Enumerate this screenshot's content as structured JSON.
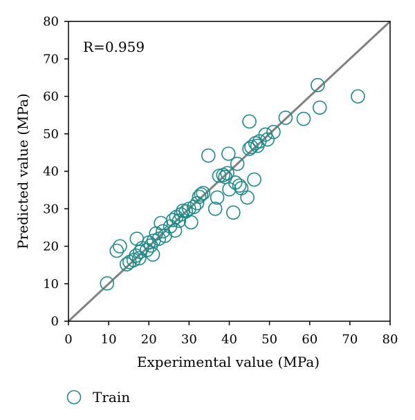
{
  "chart_data": {
    "type": "scatter",
    "xlabel": "Experimental value (MPa)",
    "ylabel": "Predicted value (MPa)",
    "xlim": [
      0,
      80
    ],
    "ylim": [
      0,
      80
    ],
    "xticks": [
      "0",
      "10",
      "20",
      "30",
      "40",
      "50",
      "60",
      "70",
      "80"
    ],
    "yticks": [
      "0",
      "10",
      "20",
      "30",
      "40",
      "50",
      "60",
      "70",
      "80"
    ],
    "grid": false,
    "annotation": "R=0.959",
    "reference_line": {
      "x": [
        0,
        80
      ],
      "y": [
        0,
        80
      ],
      "color": "#808080"
    },
    "legend_position": "bottom-left",
    "series": [
      {
        "name": "Train",
        "marker": "open-circle",
        "color": "#1a8a8a",
        "points": [
          [
            9.6,
            10.1
          ],
          [
            12.0,
            18.8
          ],
          [
            12.8,
            20.0
          ],
          [
            14.5,
            15.2
          ],
          [
            15.2,
            15.8
          ],
          [
            16.2,
            16.3
          ],
          [
            16.8,
            17.5
          ],
          [
            17.0,
            22.0
          ],
          [
            17.6,
            16.8
          ],
          [
            17.8,
            18.5
          ],
          [
            18.3,
            19.5
          ],
          [
            19.5,
            19.0
          ],
          [
            20.0,
            21.0
          ],
          [
            20.5,
            20.2
          ],
          [
            21.0,
            17.8
          ],
          [
            21.2,
            21.5
          ],
          [
            21.8,
            23.4
          ],
          [
            22.5,
            22.0
          ],
          [
            23.0,
            26.2
          ],
          [
            23.5,
            24.0
          ],
          [
            24.0,
            22.8
          ],
          [
            25.3,
            25.3
          ],
          [
            26.0,
            27.0
          ],
          [
            26.5,
            24.2
          ],
          [
            26.8,
            27.8
          ],
          [
            27.5,
            26.8
          ],
          [
            28.0,
            28.5
          ],
          [
            28.5,
            29.5
          ],
          [
            29.2,
            29.3
          ],
          [
            30.0,
            30.0
          ],
          [
            30.5,
            26.4
          ],
          [
            31.2,
            30.5
          ],
          [
            32.0,
            31.5
          ],
          [
            32.5,
            33.2
          ],
          [
            33.0,
            33.8
          ],
          [
            33.5,
            34.2
          ],
          [
            34.8,
            44.2
          ],
          [
            36.5,
            30.0
          ],
          [
            37.0,
            33.0
          ],
          [
            37.5,
            38.8
          ],
          [
            38.5,
            39.0
          ],
          [
            39.0,
            38.5
          ],
          [
            39.5,
            39.5
          ],
          [
            39.8,
            44.7
          ],
          [
            40.0,
            35.2
          ],
          [
            41.0,
            29.0
          ],
          [
            41.5,
            37.0
          ],
          [
            42.0,
            42.0
          ],
          [
            42.5,
            36.2
          ],
          [
            43.0,
            35.5
          ],
          [
            44.5,
            33.0
          ],
          [
            45.0,
            46.0
          ],
          [
            45.0,
            53.3
          ],
          [
            45.5,
            46.5
          ],
          [
            46.2,
            37.8
          ],
          [
            46.5,
            47.5
          ],
          [
            47.0,
            46.8
          ],
          [
            47.5,
            48.0
          ],
          [
            49.0,
            49.8
          ],
          [
            49.5,
            48.5
          ],
          [
            51.0,
            50.5
          ],
          [
            54.0,
            54.3
          ],
          [
            58.5,
            54.0
          ],
          [
            62.0,
            63.0
          ],
          [
            62.5,
            57.0
          ],
          [
            72.0,
            60.0
          ]
        ]
      }
    ]
  }
}
